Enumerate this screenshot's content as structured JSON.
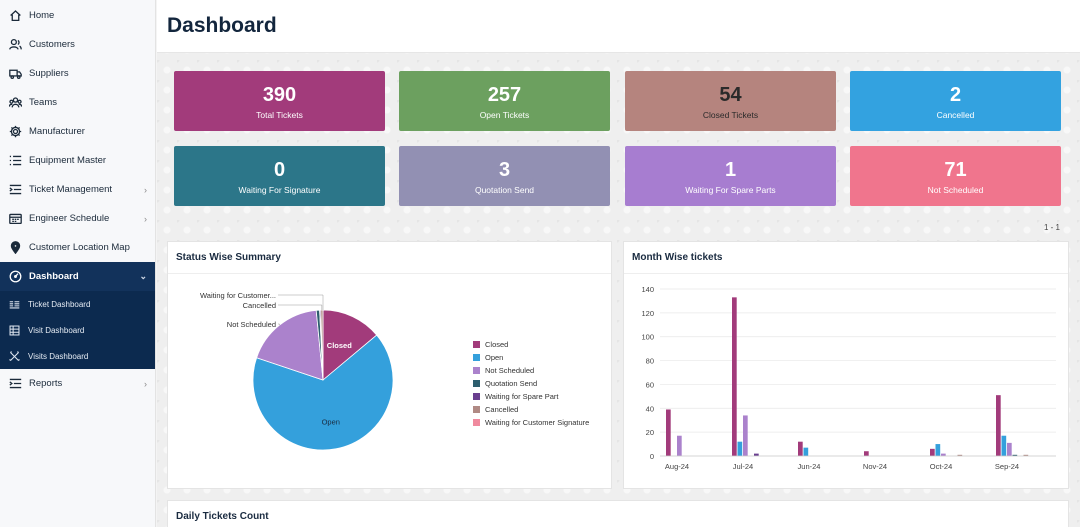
{
  "sidebar": {
    "items": [
      {
        "label": "Home",
        "icon": "home-icon"
      },
      {
        "label": "Customers",
        "icon": "users-icon"
      },
      {
        "label": "Suppliers",
        "icon": "truck-icon"
      },
      {
        "label": "Teams",
        "icon": "team-icon"
      },
      {
        "label": "Manufacturer",
        "icon": "gear-icon"
      },
      {
        "label": "Equipment Master",
        "icon": "list-icon"
      },
      {
        "label": "Ticket Management",
        "icon": "list-indent-icon"
      },
      {
        "label": "Engineer Schedule",
        "icon": "calendar-icon"
      },
      {
        "label": "Customer Location Map",
        "icon": "map-pin-icon"
      },
      {
        "label": "Dashboard",
        "icon": "gauge-icon"
      },
      {
        "label": "Reports",
        "icon": "report-icon"
      }
    ],
    "dashboard_sub": [
      {
        "label": "Ticket Dashboard",
        "icon": "ticket-icon"
      },
      {
        "label": "Visit Dashboard",
        "icon": "grid-icon"
      },
      {
        "label": "Visits Dashboard",
        "icon": "tools-icon"
      }
    ]
  },
  "header": {
    "title": "Dashboard"
  },
  "cards": [
    {
      "value": "390",
      "label": "Total Tickets",
      "color": "#a23b7b",
      "text": "#ffffff"
    },
    {
      "value": "257",
      "label": "Open Tickets",
      "color": "#6ca05f",
      "text": "#ffffff"
    },
    {
      "value": "54",
      "label": "Closed Tickets",
      "color": "#b5847e",
      "text": "#2a2a2a"
    },
    {
      "value": "2",
      "label": "Cancelled",
      "color": "#33a2e0",
      "text": "#ffffff"
    },
    {
      "value": "0",
      "label": "Waiting For Signature",
      "color": "#2c7689",
      "text": "#ffffff"
    },
    {
      "value": "3",
      "label": "Quotation Send",
      "color": "#9290b3",
      "text": "#ffffff"
    },
    {
      "value": "1",
      "label": "Waiting For Spare Parts",
      "color": "#a77dd0",
      "text": "#ffffff"
    },
    {
      "value": "71",
      "label": "Not Scheduled",
      "color": "#f0758d",
      "text": "#ffffff"
    }
  ],
  "pager": "1 - 1",
  "status_panel": {
    "title": "Status Wise Summary"
  },
  "month_panel": {
    "title": "Month Wise tickets"
  },
  "daily_panel": {
    "title": "Daily Tickets Count"
  },
  "chart_data": [
    {
      "type": "pie",
      "title": "Status Wise Summary",
      "slices": [
        {
          "label": "Closed",
          "value": 54,
          "color": "#a23b7b"
        },
        {
          "label": "Open",
          "value": 257,
          "color": "#34a0dc"
        },
        {
          "label": "Not Scheduled",
          "value": 71,
          "color": "#ab82cc"
        },
        {
          "label": "Quotation Send",
          "value": 3,
          "color": "#2d5e6e"
        },
        {
          "label": "Waiting for Spare Part",
          "value": 1,
          "color": "#6a3f8f"
        },
        {
          "label": "Cancelled",
          "value": 2,
          "color": "#b08a84"
        },
        {
          "label": "Waiting for Customer Signature",
          "value": 0,
          "color": "#f08a9e"
        }
      ],
      "slice_labels": [
        "Closed",
        "Open",
        "Not Scheduled",
        "Cancelled",
        "Waiting for Customer..."
      ],
      "legend_position": "right"
    },
    {
      "type": "bar",
      "title": "Month Wise tickets",
      "categories": [
        "Aug-24",
        "Jul-24",
        "Jun-24",
        "Nov-24",
        "Oct-24",
        "Sep-24"
      ],
      "ylim": [
        0,
        140
      ],
      "yticks": [
        0,
        20,
        40,
        60,
        80,
        100,
        120,
        140
      ],
      "grid": true,
      "series": [
        {
          "name": "Closed",
          "color": "#a23b7b",
          "values": [
            39,
            133,
            12,
            4,
            6,
            51
          ]
        },
        {
          "name": "Open",
          "color": "#34a0dc",
          "values": [
            0,
            12,
            7,
            0,
            10,
            17
          ]
        },
        {
          "name": "Not Scheduled",
          "color": "#ab82cc",
          "values": [
            17,
            34,
            0,
            0,
            2,
            11
          ]
        },
        {
          "name": "Quotation Send",
          "color": "#2d5e6e",
          "values": [
            0,
            0,
            0,
            0,
            0,
            1
          ]
        },
        {
          "name": "Waiting for Spare Part",
          "color": "#6a3f8f",
          "values": [
            0,
            2,
            0,
            0,
            0,
            0
          ]
        },
        {
          "name": "Cancelled",
          "color": "#b08a84",
          "values": [
            0,
            0,
            0,
            0,
            1,
            1
          ]
        },
        {
          "name": "Waiting for Customer Signature",
          "color": "#f08a9e",
          "values": [
            0,
            0,
            0,
            0,
            0,
            0
          ]
        }
      ]
    }
  ]
}
